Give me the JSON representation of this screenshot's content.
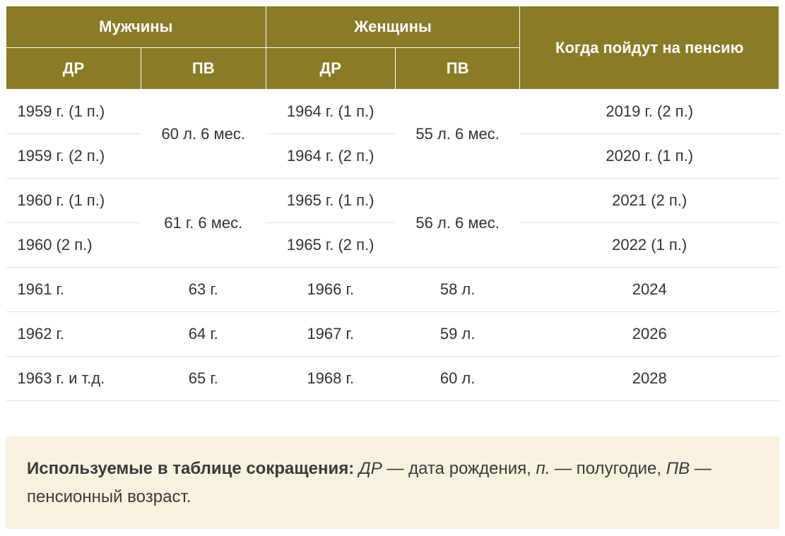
{
  "table": {
    "type": "table",
    "header_bg": "#8a7b27",
    "header_fg": "#ffffff",
    "row_border_color": "#e3e0d0",
    "cell_text_color": "#333333",
    "font_size_header": 22,
    "font_size_cell": 22,
    "columns_top": [
      {
        "label": "Мужчины",
        "span": 2
      },
      {
        "label": "Женщины",
        "span": 2
      },
      {
        "label": "Когда пойдут на пенсию",
        "span": 1,
        "rowspan": 2
      }
    ],
    "columns_sub": [
      {
        "label": "ДР"
      },
      {
        "label": "ПВ"
      },
      {
        "label": "ДР"
      },
      {
        "label": "ПВ"
      }
    ],
    "rows": [
      {
        "m_dr": "1959 г. (1 п.)",
        "m_pv": "60 л. 6 мес.",
        "m_pv_rowspan": 2,
        "w_dr": "1964 г. (1 п.)",
        "w_pv": "55 л. 6 мес.",
        "w_pv_rowspan": 2,
        "retire": "2019 г. (2 п.)"
      },
      {
        "m_dr": "1959 г. (2 п.)",
        "w_dr": "1964 г. (2 п.)",
        "retire": "2020 г. (1 п.)"
      },
      {
        "m_dr": "1960 г. (1 п.)",
        "m_pv": "61 г. 6 мес.",
        "m_pv_rowspan": 2,
        "w_dr": "1965 г. (1 п.)",
        "w_pv": "56 л. 6 мес.",
        "w_pv_rowspan": 2,
        "retire": "2021 (2 п.)"
      },
      {
        "m_dr": "1960 (2 п.)",
        "w_dr": "1965 г. (2 п.)",
        "retire": "2022 (1 п.)"
      },
      {
        "m_dr": "1961 г.",
        "m_pv": "63 г.",
        "w_dr": "1966 г.",
        "w_pv": "58 л.",
        "retire": "2024"
      },
      {
        "m_dr": "1962 г.",
        "m_pv": "64 г.",
        "w_dr": "1967 г.",
        "w_pv": "59 л.",
        "retire": "2026"
      },
      {
        "m_dr": "1963 г. и т.д.",
        "m_pv": "65 г.",
        "w_dr": "1968 г.",
        "w_pv": "60 л.",
        "retire": "2028"
      }
    ]
  },
  "legend": {
    "bg": "#f6f2df",
    "font_size": 24,
    "lead_bold": "Используемые в таблице сокращения:",
    "abbr1_i": "ДР",
    "abbr1_txt": " — дата рождения, ",
    "abbr2_i": "п.",
    "abbr2_txt": " — полугодие, ",
    "abbr3_i": "ПВ",
    "abbr3_txt": " — пенсионный возраст."
  }
}
